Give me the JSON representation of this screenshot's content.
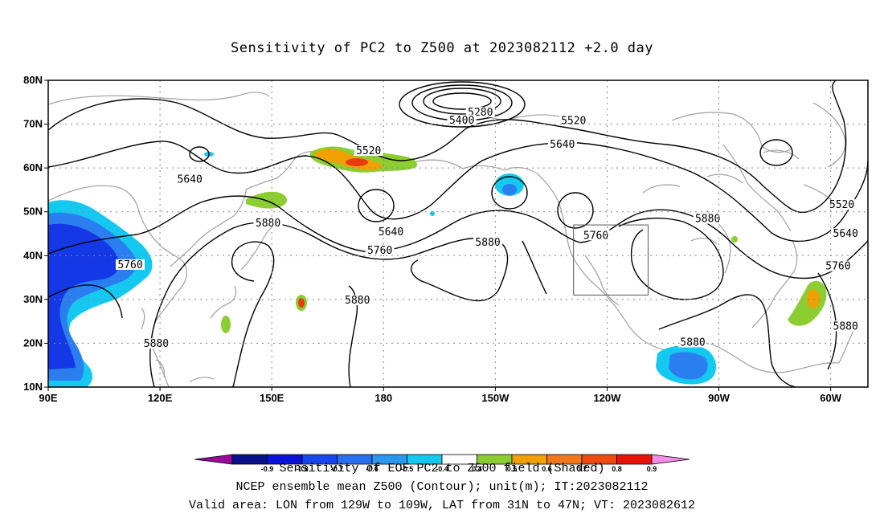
{
  "title": "Sensitivity of PC2 to Z500 at 2023082112 +2.0 day",
  "map": {
    "lon_range": [
      90,
      310
    ],
    "lat_range": [
      10,
      80
    ],
    "lat_ticks": [
      {
        "value": 80,
        "label": "80N"
      },
      {
        "value": 70,
        "label": "70N"
      },
      {
        "value": 60,
        "label": "60N"
      },
      {
        "value": 50,
        "label": "50N"
      },
      {
        "value": 40,
        "label": "40N"
      },
      {
        "value": 30,
        "label": "30N"
      },
      {
        "value": 20,
        "label": "20N"
      },
      {
        "value": 10,
        "label": "10N"
      }
    ],
    "lon_ticks": [
      {
        "value": 90,
        "label": "90E"
      },
      {
        "value": 120,
        "label": "120E"
      },
      {
        "value": 150,
        "label": "150E"
      },
      {
        "value": 180,
        "label": "180"
      },
      {
        "value": 210,
        "label": "150W"
      },
      {
        "value": 240,
        "label": "120W"
      },
      {
        "value": 270,
        "label": "90W"
      },
      {
        "value": 300,
        "label": "60W"
      }
    ],
    "grid": "dotted",
    "valid_box": {
      "lon": [
        231,
        251
      ],
      "lat": [
        31,
        47
      ]
    },
    "contour_labels": [
      {
        "text": "5280",
        "lon": 206,
        "lat": 72.3
      },
      {
        "text": "5400",
        "lon": 201,
        "lat": 70.5
      },
      {
        "text": "5520",
        "lon": 231,
        "lat": 70.4
      },
      {
        "text": "5520",
        "lon": 176,
        "lat": 63.5
      },
      {
        "text": "5640",
        "lon": 228,
        "lat": 65
      },
      {
        "text": "5640",
        "lon": 128,
        "lat": 57
      },
      {
        "text": "5880",
        "lon": 149,
        "lat": 47
      },
      {
        "text": "5640",
        "lon": 182,
        "lat": 45
      },
      {
        "text": "5760",
        "lon": 179,
        "lat": 40.8
      },
      {
        "text": "5880",
        "lon": 208,
        "lat": 42.6
      },
      {
        "text": "5760",
        "lon": 237,
        "lat": 44.2
      },
      {
        "text": "5880",
        "lon": 267,
        "lat": 48
      },
      {
        "text": "5520",
        "lon": 303,
        "lat": 51.2
      },
      {
        "text": "5640",
        "lon": 304,
        "lat": 44.6
      },
      {
        "text": "5760",
        "lon": 302,
        "lat": 37.2
      },
      {
        "text": "5760",
        "lon": 112,
        "lat": 37.5
      },
      {
        "text": "5880",
        "lon": 173,
        "lat": 29.4
      },
      {
        "text": "5880",
        "lon": 119,
        "lat": 19.5
      },
      {
        "text": "5880",
        "lon": 263,
        "lat": 19.8
      },
      {
        "text": "5880",
        "lon": 304,
        "lat": 23.5
      }
    ]
  },
  "colorbar": {
    "ticks": [
      "-0.9",
      "-0.8",
      "-0.7",
      "-0.6",
      "-0.5",
      "-0.4",
      "0.4",
      "0.5",
      "0.6",
      "0.7",
      "0.8",
      "0.9"
    ],
    "colors": [
      "#9a0a9a",
      "#08108c",
      "#0a14d8",
      "#1a46f0",
      "#2a6ff2",
      "#2a98ee",
      "#14c8f0",
      "#ffffff",
      "#8ccd32",
      "#f0a000",
      "#f07818",
      "#f04a10",
      "#e81408",
      "#f58ce6"
    ]
  },
  "shading_colors": {
    "neg_strong": "#1438e6",
    "neg_mid": "#2a7ef0",
    "neg_weak": "#14c8f0",
    "pos_weak": "#8ccd32",
    "pos_mid": "#f0a000",
    "pos_strong": "#e83c10"
  },
  "captions": {
    "line1": "Sensitivity of EOF PC2 to Z500 field (Shaded)",
    "line2": "NCEP ensemble mean Z500 (Contour); unit(m); IT:2023082112",
    "line3": "Valid area: LON from 129W to 109W, LAT from 31N to 47N; VT: 2023082612"
  }
}
